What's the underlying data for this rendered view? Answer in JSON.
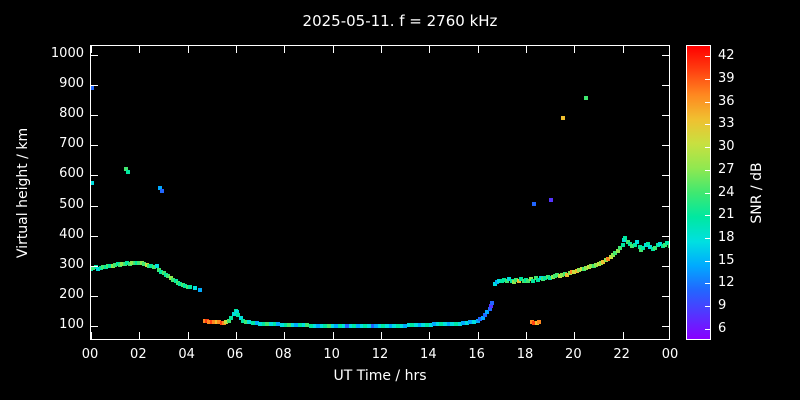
{
  "colors": {
    "background": "#000000",
    "foreground": "#ffffff",
    "axis": "#ffffff"
  },
  "chart_data": {
    "type": "scatter",
    "title": "2025-05-11. f = 2760 kHz",
    "xlabel": "UT Time / hrs",
    "ylabel": "Virtual height / km",
    "colorbar_label": "SNR / dB",
    "xlim": [
      0,
      24
    ],
    "ylim": [
      50,
      1030
    ],
    "grid": false,
    "x_ticks": [
      {
        "v": 0,
        "label": "00"
      },
      {
        "v": 2,
        "label": "02"
      },
      {
        "v": 4,
        "label": "04"
      },
      {
        "v": 6,
        "label": "06"
      },
      {
        "v": 8,
        "label": "08"
      },
      {
        "v": 10,
        "label": "10"
      },
      {
        "v": 12,
        "label": "12"
      },
      {
        "v": 14,
        "label": "14"
      },
      {
        "v": 16,
        "label": "16"
      },
      {
        "v": 18,
        "label": "18"
      },
      {
        "v": 20,
        "label": "20"
      },
      {
        "v": 22,
        "label": "22"
      },
      {
        "v": 24,
        "label": "00"
      }
    ],
    "y_ticks": [
      {
        "v": 100,
        "label": "100"
      },
      {
        "v": 200,
        "label": "200"
      },
      {
        "v": 300,
        "label": "300"
      },
      {
        "v": 400,
        "label": "400"
      },
      {
        "v": 500,
        "label": "500"
      },
      {
        "v": 600,
        "label": "600"
      },
      {
        "v": 700,
        "label": "700"
      },
      {
        "v": 800,
        "label": "800"
      },
      {
        "v": 900,
        "label": "900"
      },
      {
        "v": 1000,
        "label": "1000"
      }
    ],
    "colorbar": {
      "range": [
        4.5,
        43.5
      ],
      "ticks": [
        6,
        9,
        12,
        15,
        18,
        21,
        24,
        27,
        30,
        33,
        36,
        39,
        42
      ],
      "stops": [
        {
          "v": 6,
          "c": "#8800ff"
        },
        {
          "v": 9,
          "c": "#5533ff"
        },
        {
          "v": 12,
          "c": "#2266ff"
        },
        {
          "v": 15,
          "c": "#00aaff"
        },
        {
          "v": 18,
          "c": "#00e0e0"
        },
        {
          "v": 21,
          "c": "#00e8a0"
        },
        {
          "v": 24,
          "c": "#40e870"
        },
        {
          "v": 27,
          "c": "#90e850"
        },
        {
          "v": 30,
          "c": "#c8e040"
        },
        {
          "v": 33,
          "c": "#f0c030"
        },
        {
          "v": 36,
          "c": "#ff8820"
        },
        {
          "v": 39,
          "c": "#ff4010"
        },
        {
          "v": 42,
          "c": "#ff0000"
        }
      ]
    },
    "points_format": [
      "ut_hours",
      "virtual_height_km",
      "snr_db"
    ],
    "points": [
      [
        0.0,
        290,
        21
      ],
      [
        0.1,
        293,
        24
      ],
      [
        0.2,
        295,
        21
      ],
      [
        0.3,
        290,
        18
      ],
      [
        0.4,
        292,
        21
      ],
      [
        0.5,
        295,
        24
      ],
      [
        0.6,
        297,
        21
      ],
      [
        0.7,
        300,
        24
      ],
      [
        0.8,
        298,
        21
      ],
      [
        0.9,
        300,
        27
      ],
      [
        1.0,
        302,
        24
      ],
      [
        1.1,
        305,
        21
      ],
      [
        1.2,
        303,
        24
      ],
      [
        1.3,
        305,
        27
      ],
      [
        1.4,
        307,
        24
      ],
      [
        1.5,
        308,
        21
      ],
      [
        1.6,
        306,
        24
      ],
      [
        1.7,
        308,
        27
      ],
      [
        1.8,
        310,
        24
      ],
      [
        1.9,
        308,
        21
      ],
      [
        2.0,
        310,
        24
      ],
      [
        2.1,
        308,
        27
      ],
      [
        2.2,
        305,
        24
      ],
      [
        2.3,
        303,
        30
      ],
      [
        2.4,
        300,
        24
      ],
      [
        2.5,
        298,
        21
      ],
      [
        2.6,
        295,
        24
      ],
      [
        2.75,
        300,
        18
      ],
      [
        2.8,
        285,
        24
      ],
      [
        2.9,
        280,
        21
      ],
      [
        3.0,
        275,
        24
      ],
      [
        3.1,
        270,
        21
      ],
      [
        3.2,
        265,
        24
      ],
      [
        3.3,
        258,
        27
      ],
      [
        3.4,
        252,
        24
      ],
      [
        3.5,
        248,
        21
      ],
      [
        3.6,
        242,
        24
      ],
      [
        3.7,
        238,
        21
      ],
      [
        3.8,
        235,
        24
      ],
      [
        3.9,
        232,
        21
      ],
      [
        4.0,
        230,
        24
      ],
      [
        4.1,
        228,
        21
      ],
      [
        4.3,
        225,
        18
      ],
      [
        4.5,
        220,
        15
      ],
      [
        4.7,
        118,
        36
      ],
      [
        4.8,
        116,
        39
      ],
      [
        4.9,
        114,
        36
      ],
      [
        5.0,
        113,
        39
      ],
      [
        5.1,
        112,
        36
      ],
      [
        5.2,
        114,
        33
      ],
      [
        5.3,
        112,
        36
      ],
      [
        5.4,
        111,
        39
      ],
      [
        5.5,
        110,
        36
      ],
      [
        5.6,
        112,
        30
      ],
      [
        5.7,
        118,
        24
      ],
      [
        5.8,
        128,
        21
      ],
      [
        5.9,
        140,
        18
      ],
      [
        6.0,
        150,
        21
      ],
      [
        6.05,
        145,
        18
      ],
      [
        6.1,
        135,
        21
      ],
      [
        6.2,
        125,
        18
      ],
      [
        6.3,
        118,
        21
      ],
      [
        6.4,
        114,
        24
      ],
      [
        6.55,
        112,
        18
      ],
      [
        6.7,
        110,
        21
      ],
      [
        6.85,
        109,
        15
      ],
      [
        7.0,
        108,
        18
      ],
      [
        7.15,
        107,
        21
      ],
      [
        7.3,
        106,
        24
      ],
      [
        7.45,
        106,
        18
      ],
      [
        7.6,
        105,
        21
      ],
      [
        7.75,
        105,
        15
      ],
      [
        7.9,
        104,
        18
      ],
      [
        8.05,
        104,
        21
      ],
      [
        8.2,
        103,
        24
      ],
      [
        8.35,
        103,
        18
      ],
      [
        8.5,
        103,
        15
      ],
      [
        8.65,
        102,
        21
      ],
      [
        8.8,
        102,
        18
      ],
      [
        8.95,
        102,
        24
      ],
      [
        9.1,
        101,
        21
      ],
      [
        9.25,
        101,
        18
      ],
      [
        9.4,
        101,
        15
      ],
      [
        9.55,
        100,
        18
      ],
      [
        9.7,
        100,
        21
      ],
      [
        9.85,
        100,
        24
      ],
      [
        10.0,
        100,
        18
      ],
      [
        10.15,
        100,
        15
      ],
      [
        10.3,
        100,
        21
      ],
      [
        10.45,
        100,
        18
      ],
      [
        10.6,
        100,
        12
      ],
      [
        10.75,
        100,
        18
      ],
      [
        10.9,
        100,
        21
      ],
      [
        11.05,
        100,
        15
      ],
      [
        11.2,
        100,
        18
      ],
      [
        11.35,
        100,
        21
      ],
      [
        11.5,
        100,
        18
      ],
      [
        11.65,
        100,
        12
      ],
      [
        11.8,
        100,
        15
      ],
      [
        11.95,
        100,
        18
      ],
      [
        12.1,
        100,
        21
      ],
      [
        12.25,
        100,
        18
      ],
      [
        12.4,
        100,
        15
      ],
      [
        12.55,
        100,
        18
      ],
      [
        12.7,
        101,
        21
      ],
      [
        12.85,
        101,
        18
      ],
      [
        13.0,
        101,
        15
      ],
      [
        13.15,
        102,
        18
      ],
      [
        13.3,
        102,
        21
      ],
      [
        13.45,
        102,
        18
      ],
      [
        13.6,
        103,
        15
      ],
      [
        13.75,
        103,
        18
      ],
      [
        13.9,
        104,
        21
      ],
      [
        14.05,
        104,
        18
      ],
      [
        14.2,
        105,
        15
      ],
      [
        14.35,
        105,
        18
      ],
      [
        14.5,
        106,
        21
      ],
      [
        14.65,
        106,
        18
      ],
      [
        14.8,
        107,
        15
      ],
      [
        14.95,
        107,
        18
      ],
      [
        15.1,
        108,
        21
      ],
      [
        15.25,
        108,
        18
      ],
      [
        15.4,
        109,
        15
      ],
      [
        15.55,
        110,
        18
      ],
      [
        15.7,
        112,
        15
      ],
      [
        15.85,
        114,
        18
      ],
      [
        16.0,
        117,
        15
      ],
      [
        16.1,
        122,
        12
      ],
      [
        16.2,
        128,
        15
      ],
      [
        16.3,
        135,
        12
      ],
      [
        16.4,
        145,
        15
      ],
      [
        16.5,
        155,
        12
      ],
      [
        16.55,
        165,
        9
      ],
      [
        16.6,
        175,
        12
      ],
      [
        16.7,
        240,
        18
      ],
      [
        16.8,
        245,
        15
      ],
      [
        16.9,
        250,
        18
      ],
      [
        17.0,
        248,
        21
      ],
      [
        17.1,
        252,
        21
      ],
      [
        17.2,
        248,
        24
      ],
      [
        17.3,
        255,
        18
      ],
      [
        17.4,
        250,
        21
      ],
      [
        17.5,
        245,
        27
      ],
      [
        17.6,
        252,
        24
      ],
      [
        17.7,
        248,
        33
      ],
      [
        17.8,
        255,
        21
      ],
      [
        17.9,
        250,
        24
      ],
      [
        18.0,
        252,
        21
      ],
      [
        18.1,
        248,
        24
      ],
      [
        18.2,
        255,
        27
      ],
      [
        18.3,
        250,
        21
      ],
      [
        18.4,
        258,
        24
      ],
      [
        18.5,
        252,
        21
      ],
      [
        18.6,
        260,
        18
      ],
      [
        18.7,
        255,
        24
      ],
      [
        18.8,
        258,
        21
      ],
      [
        18.9,
        262,
        24
      ],
      [
        19.0,
        258,
        21
      ],
      [
        19.1,
        262,
        27
      ],
      [
        19.2,
        265,
        24
      ],
      [
        18.25,
        112,
        36
      ],
      [
        18.35,
        110,
        39
      ],
      [
        18.45,
        111,
        33
      ],
      [
        18.55,
        113,
        36
      ],
      [
        19.3,
        268,
        24
      ],
      [
        19.4,
        265,
        30
      ],
      [
        19.5,
        270,
        27
      ],
      [
        19.6,
        272,
        24
      ],
      [
        19.7,
        270,
        33
      ],
      [
        19.8,
        275,
        27
      ],
      [
        19.9,
        278,
        36
      ],
      [
        20.0,
        280,
        30
      ],
      [
        20.1,
        282,
        33
      ],
      [
        20.2,
        285,
        27
      ],
      [
        20.3,
        288,
        30
      ],
      [
        20.4,
        290,
        24
      ],
      [
        20.5,
        292,
        27
      ],
      [
        20.6,
        295,
        30
      ],
      [
        20.7,
        298,
        27
      ],
      [
        20.8,
        300,
        24
      ],
      [
        20.9,
        302,
        27
      ],
      [
        21.0,
        305,
        30
      ],
      [
        21.1,
        308,
        27
      ],
      [
        21.2,
        312,
        33
      ],
      [
        21.3,
        318,
        27
      ],
      [
        21.4,
        322,
        36
      ],
      [
        21.5,
        328,
        30
      ],
      [
        21.6,
        335,
        27
      ],
      [
        21.7,
        342,
        24
      ],
      [
        21.8,
        350,
        27
      ],
      [
        21.9,
        358,
        24
      ],
      [
        22.0,
        368,
        21
      ],
      [
        22.05,
        385,
        18
      ],
      [
        22.1,
        392,
        21
      ],
      [
        22.2,
        380,
        24
      ],
      [
        22.3,
        372,
        21
      ],
      [
        22.4,
        365,
        24
      ],
      [
        22.5,
        368,
        21
      ],
      [
        22.6,
        378,
        18
      ],
      [
        22.7,
        362,
        21
      ],
      [
        22.75,
        352,
        24
      ],
      [
        22.85,
        358,
        21
      ],
      [
        22.95,
        368,
        18
      ],
      [
        23.05,
        372,
        21
      ],
      [
        23.15,
        362,
        18
      ],
      [
        23.25,
        355,
        21
      ],
      [
        23.35,
        360,
        24
      ],
      [
        23.45,
        368,
        21
      ],
      [
        23.55,
        372,
        18
      ],
      [
        23.65,
        365,
        21
      ],
      [
        23.75,
        370,
        24
      ],
      [
        23.85,
        375,
        21
      ],
      [
        23.95,
        365,
        24
      ],
      [
        0.03,
        575,
        18
      ],
      [
        0.05,
        890,
        12
      ],
      [
        1.45,
        622,
        24
      ],
      [
        1.55,
        612,
        21
      ],
      [
        2.85,
        558,
        15
      ],
      [
        2.95,
        548,
        12
      ],
      [
        18.35,
        505,
        12
      ],
      [
        19.05,
        518,
        9
      ],
      [
        19.55,
        790,
        33
      ],
      [
        20.5,
        858,
        24
      ]
    ]
  }
}
